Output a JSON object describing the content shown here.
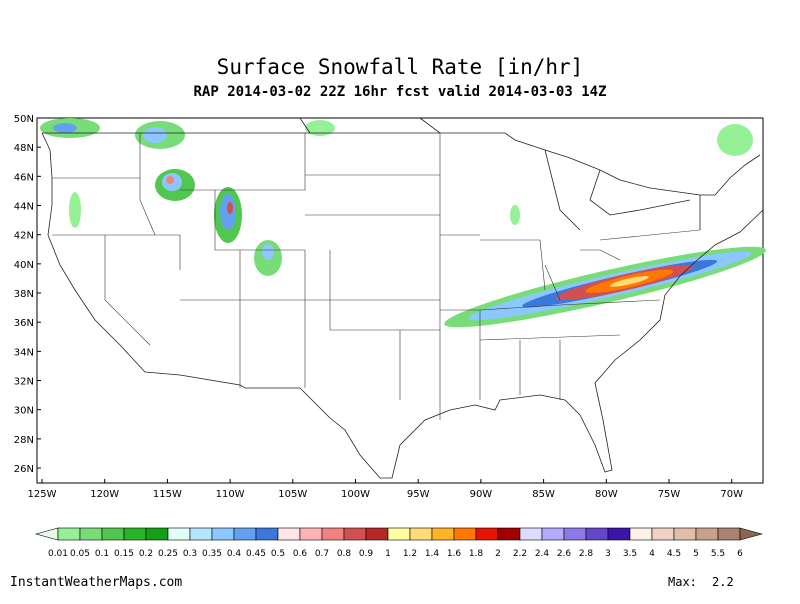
{
  "header": {
    "title": "Surface Snowfall Rate [in/hr]",
    "subtitle": "RAP 2014-03-02 22Z 16hr fcst valid 2014-03-03 14Z"
  },
  "map": {
    "lat_labels": [
      "50N",
      "48N",
      "46N",
      "44N",
      "42N",
      "40N",
      "38N",
      "36N",
      "34N",
      "32N",
      "30N",
      "28N",
      "26N"
    ],
    "lon_labels": [
      "125W",
      "120W",
      "115W",
      "110W",
      "105W",
      "100W",
      "95W",
      "90W",
      "85W",
      "80W",
      "75W",
      "70W"
    ]
  },
  "colorbar": {
    "labels": [
      "0.01",
      "0.05",
      "0.1",
      "0.15",
      "0.2",
      "0.25",
      "0.3",
      "0.35",
      "0.4",
      "0.45",
      "0.5",
      "0.6",
      "0.7",
      "0.8",
      "0.9",
      "1",
      "1.2",
      "1.4",
      "1.6",
      "1.8",
      "2",
      "2.2",
      "2.4",
      "2.6",
      "2.8",
      "3",
      "3.5",
      "4",
      "4.5",
      "5",
      "5.5",
      "6"
    ],
    "colors": [
      "#e6fae6",
      "#96f096",
      "#78dc78",
      "#50c850",
      "#28b428",
      "#14a014",
      "#e0fff8",
      "#b4e6ff",
      "#8cc8ff",
      "#64a0f0",
      "#3c78dc",
      "#ffe6e6",
      "#ffb4b4",
      "#f08282",
      "#d25050",
      "#b42828",
      "#ffffa0",
      "#ffdc78",
      "#ffb428",
      "#ff7800",
      "#e61400",
      "#a00000",
      "#dcdcff",
      "#b4aaff",
      "#8c78e6",
      "#6446c8",
      "#3c14aa",
      "#faf0e6",
      "#f0d2c3",
      "#e1bea8",
      "#c8a08c",
      "#aa8273",
      "#8c6450"
    ]
  },
  "footer": {
    "source": "InstantWeatherMaps.com",
    "max_label": "Max:",
    "max_value": "2.2"
  }
}
